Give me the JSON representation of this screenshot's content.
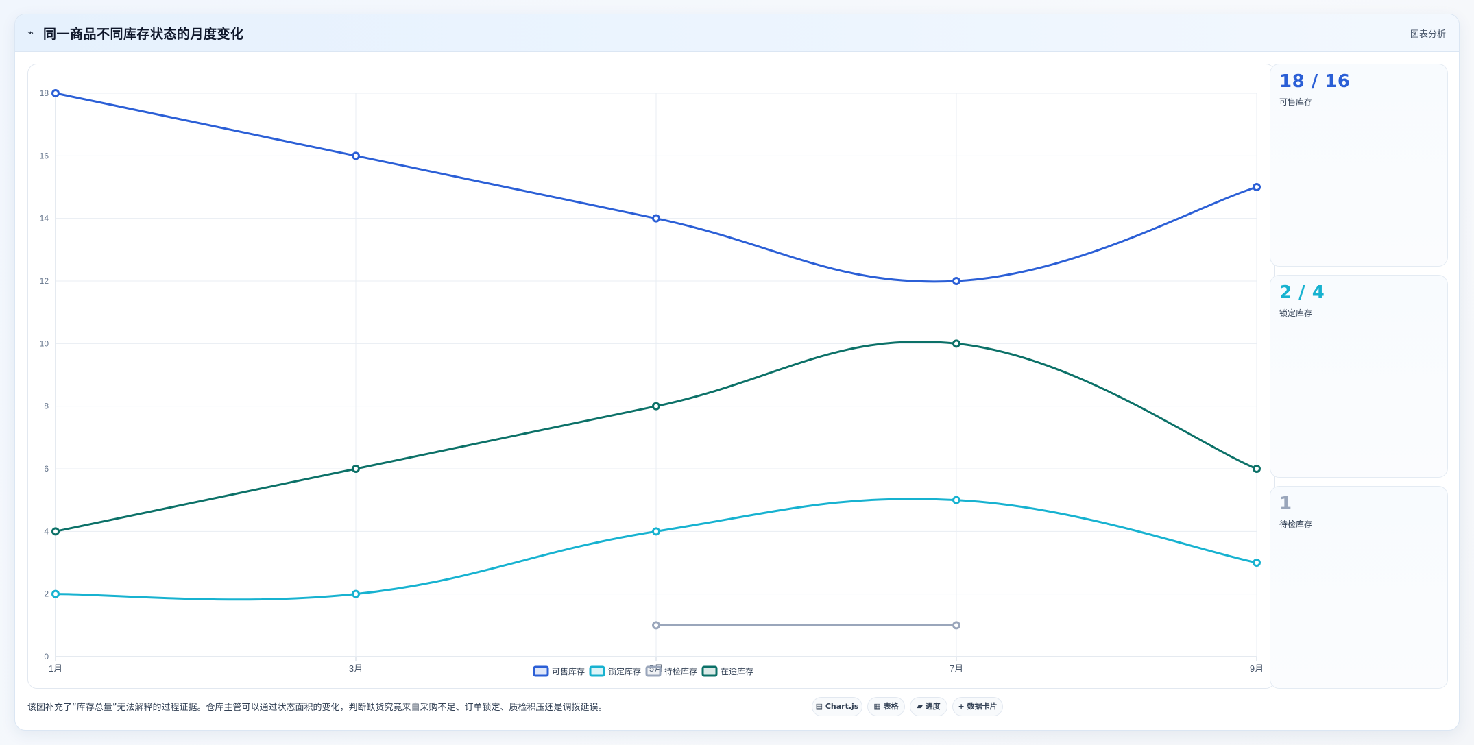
{
  "header": {
    "icon": "line-chart-icon",
    "icon_glyph": "⌁",
    "title": "同一商品不同库存状态的月度变化",
    "right_label": "图表分析"
  },
  "chart_data": {
    "type": "line",
    "title": "",
    "xlabel": "",
    "ylabel": "",
    "categories": [
      "1月",
      "3月",
      "5月",
      "7月",
      "9月"
    ],
    "ylim": [
      0,
      18
    ],
    "yticks": [
      "0",
      "2",
      "4",
      "6",
      "8",
      "10",
      "12",
      "14",
      "16",
      "18"
    ],
    "grid": true,
    "legend_position": "bottom",
    "smooth": true,
    "series": [
      {
        "name": "可售库存",
        "color": "#2b5fd6",
        "values": [
          18,
          16,
          14,
          12,
          15
        ]
      },
      {
        "name": "锁定库存",
        "color": "#17b2d0",
        "values": [
          2,
          2,
          4,
          5,
          3
        ]
      },
      {
        "name": "待检库存",
        "color": "#9aa6bb",
        "values": [
          null,
          null,
          1,
          1,
          null
        ]
      },
      {
        "name": "在途库存",
        "color": "#0c7168",
        "values": [
          4,
          6,
          8,
          10,
          6
        ]
      }
    ]
  },
  "side_cards": [
    {
      "value": "18 / 16",
      "label": "可售库存",
      "color": "#2b5fd6"
    },
    {
      "value": "2 / 4",
      "label": "锁定库存",
      "color": "#17b2d0"
    },
    {
      "value": "1",
      "label": "待检库存",
      "color": "#9aa6bb"
    }
  ],
  "footer": {
    "note": "该图补充了“库存总量”无法解释的过程证据。仓库主管可以通过状态面积的变化，判断缺货究竟来自采购不足、订单锁定、质检积压还是调拨延误。",
    "chips": [
      {
        "label": "▤ Chart.js",
        "icon": "chart-icon"
      },
      {
        "label": "▦ 表格",
        "icon": "table-icon"
      },
      {
        "label": "▰ 进度",
        "icon": "progress-icon"
      },
      {
        "label": "+ 数据卡片",
        "icon": "plus-icon"
      }
    ]
  }
}
